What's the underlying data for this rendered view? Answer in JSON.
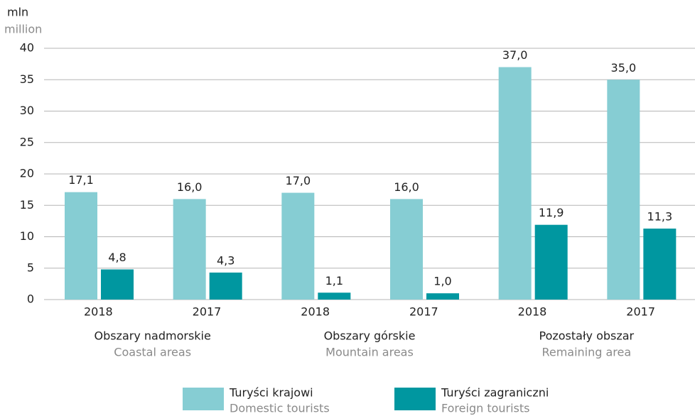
{
  "chart_data": {
    "type": "bar",
    "y_label": "mln",
    "y_label_en": "million",
    "categories": [
      "2018",
      "2017",
      "2018",
      "2017",
      "2018",
      "2017"
    ],
    "groups": [
      {
        "label": "Obszary nadmorskie",
        "label_en": "Coastal areas"
      },
      {
        "label": "Obszary górskie",
        "label_en": "Mountain areas"
      },
      {
        "label": "Pozostały obszar",
        "label_en": "Remaining area"
      }
    ],
    "series": [
      {
        "name": "Turyści krajowi",
        "name_en": "Domestic tourists",
        "color": "#86cdd3",
        "values": [
          17.1,
          16.0,
          17.0,
          16.0,
          37.0,
          35.0
        ],
        "value_labels": [
          "17,1",
          "16,0",
          "17,0",
          "16,0",
          "37,0",
          "35,0"
        ]
      },
      {
        "name": "Turyści zagraniczni",
        "name_en": "Foreign tourists",
        "color": "#0097a0",
        "values": [
          4.8,
          4.3,
          1.1,
          1.0,
          11.9,
          11.3
        ],
        "value_labels": [
          "4,8",
          "4,3",
          "1,1",
          "1,0",
          "11,9",
          "11,3"
        ]
      }
    ],
    "ylim": [
      0,
      40
    ],
    "yticks": [
      0,
      5,
      10,
      15,
      20,
      25,
      30,
      35,
      40
    ],
    "grid": true
  }
}
